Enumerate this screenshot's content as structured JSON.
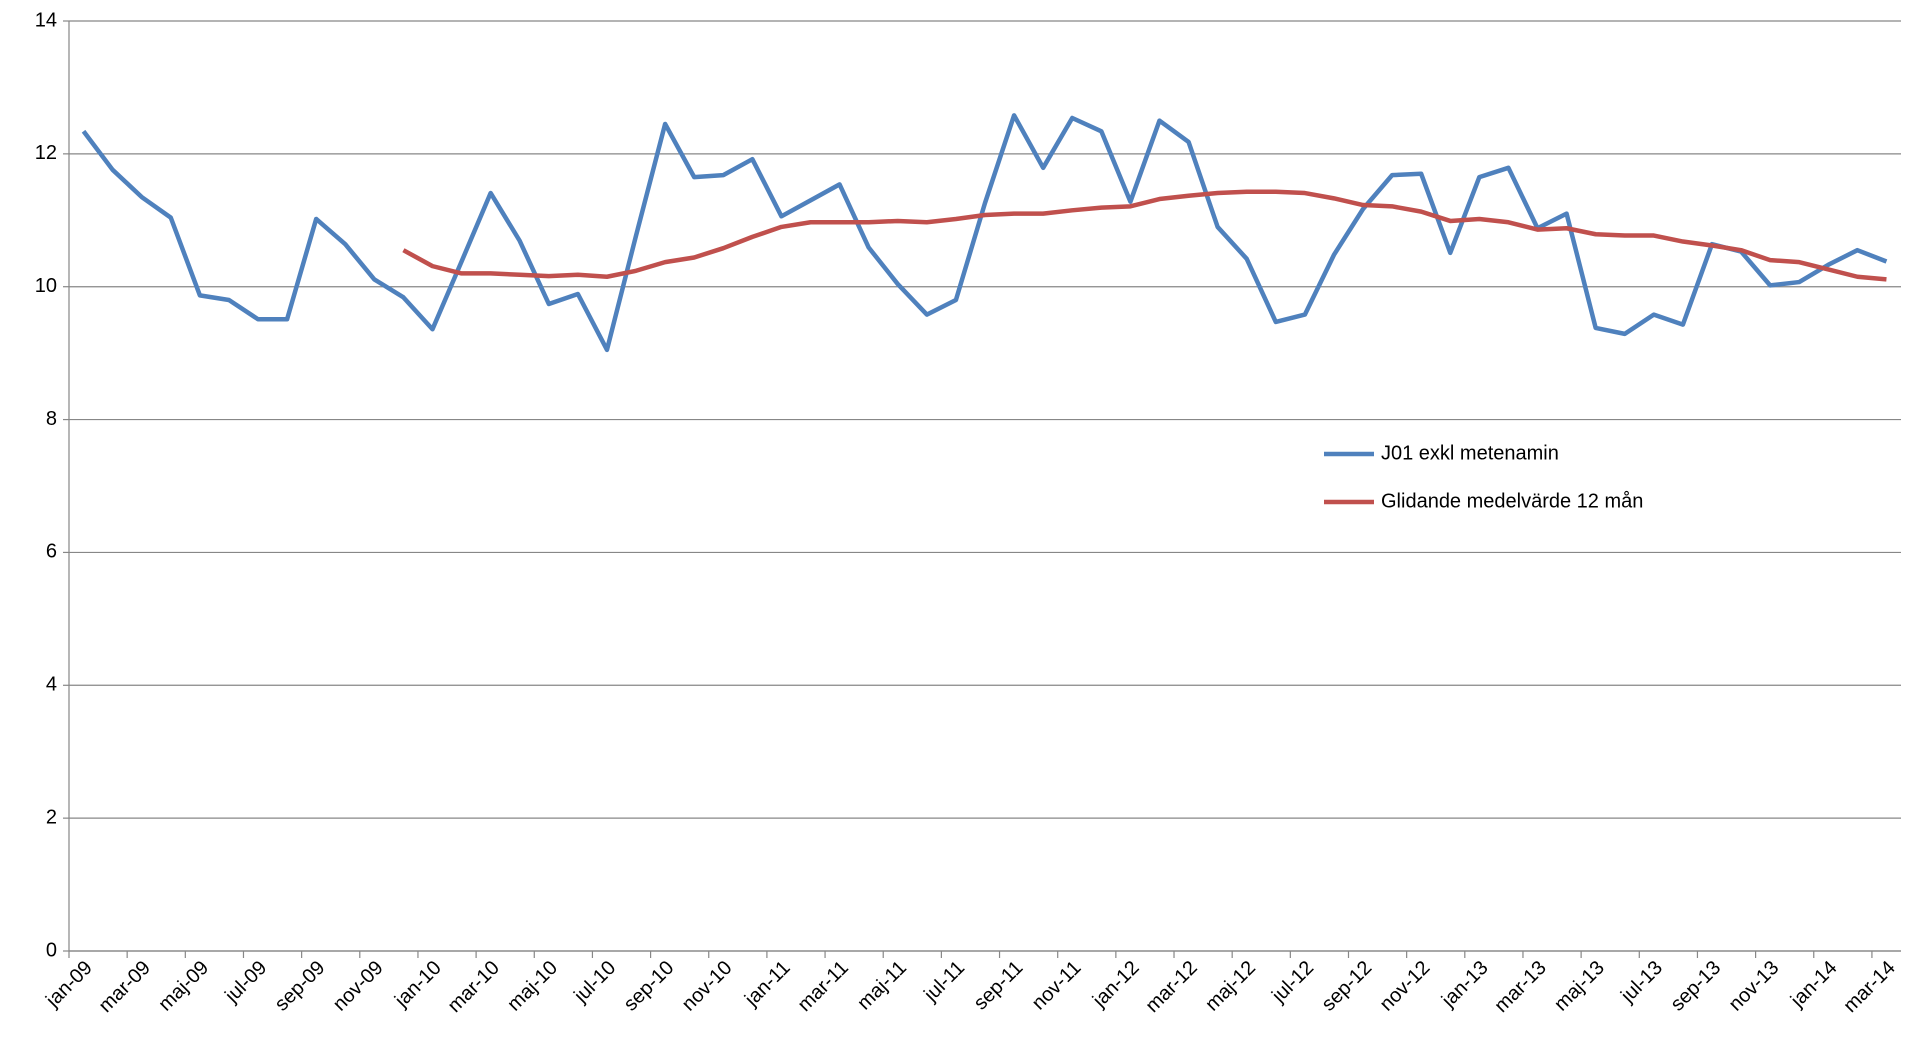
{
  "chart_data": {
    "type": "line",
    "categories": [
      "jan-09",
      null,
      "mar-09",
      null,
      "maj-09",
      null,
      "jul-09",
      null,
      "sep-09",
      null,
      "nov-09",
      null,
      "jan-10",
      null,
      "mar-10",
      null,
      "maj-10",
      null,
      "jul-10",
      null,
      "sep-10",
      null,
      "nov-10",
      null,
      "jan-11",
      null,
      "mar-11",
      null,
      "maj-11",
      null,
      "jul-11",
      null,
      "sep-11",
      null,
      "nov-11",
      null,
      "jan-12",
      null,
      "mar-12",
      null,
      "maj-12",
      null,
      "jul-12",
      null,
      "sep-12",
      null,
      "nov-12",
      null,
      "jan-13",
      null,
      "mar-13",
      null,
      "maj-13",
      null,
      "jul-13",
      null,
      "sep-13",
      null,
      "nov-13",
      null,
      "jan-14",
      null,
      "mar-14"
    ],
    "series": [
      {
        "name": "J01 exkl metenamin",
        "color": "#4f81bd",
        "values": [
          12.34,
          11.76,
          11.35,
          11.04,
          9.87,
          9.8,
          9.51,
          9.51,
          11.02,
          10.64,
          10.11,
          9.84,
          9.36,
          10.38,
          11.41,
          10.69,
          9.74,
          9.89,
          9.05,
          10.77,
          12.45,
          11.65,
          11.68,
          11.92,
          11.06,
          11.3,
          11.54,
          10.59,
          10.04,
          9.58,
          9.8,
          11.26,
          12.58,
          11.79,
          12.54,
          12.34,
          11.28,
          12.5,
          12.18,
          10.9,
          10.42,
          9.47,
          9.58,
          10.48,
          11.17,
          11.68,
          11.7,
          10.51,
          11.65,
          11.79,
          10.88,
          11.1,
          9.38,
          9.29,
          9.58,
          9.43,
          10.64,
          10.53,
          10.02,
          10.07,
          10.33,
          10.55,
          10.38
        ]
      },
      {
        "name": "Glidande medelvärde 12 mån",
        "color": "#c0504d",
        "values": [
          null,
          null,
          null,
          null,
          null,
          null,
          null,
          null,
          null,
          null,
          null,
          10.55,
          10.31,
          10.2,
          10.2,
          10.18,
          10.16,
          10.18,
          10.15,
          10.24,
          10.37,
          10.44,
          10.58,
          10.75,
          10.9,
          10.97,
          10.97,
          10.97,
          10.99,
          10.97,
          11.02,
          11.08,
          11.1,
          11.1,
          11.15,
          11.19,
          11.21,
          11.32,
          11.37,
          11.41,
          11.43,
          11.43,
          11.41,
          11.33,
          11.23,
          11.21,
          11.13,
          10.99,
          11.02,
          10.97,
          10.86,
          10.88,
          10.79,
          10.77,
          10.77,
          10.68,
          10.62,
          10.55,
          10.4,
          10.37,
          10.26,
          10.15,
          10.11
        ]
      }
    ],
    "ylim": [
      0,
      14
    ],
    "yticks": [
      0,
      2,
      4,
      6,
      8,
      10,
      12,
      14
    ],
    "grid": true,
    "legend": "right"
  }
}
